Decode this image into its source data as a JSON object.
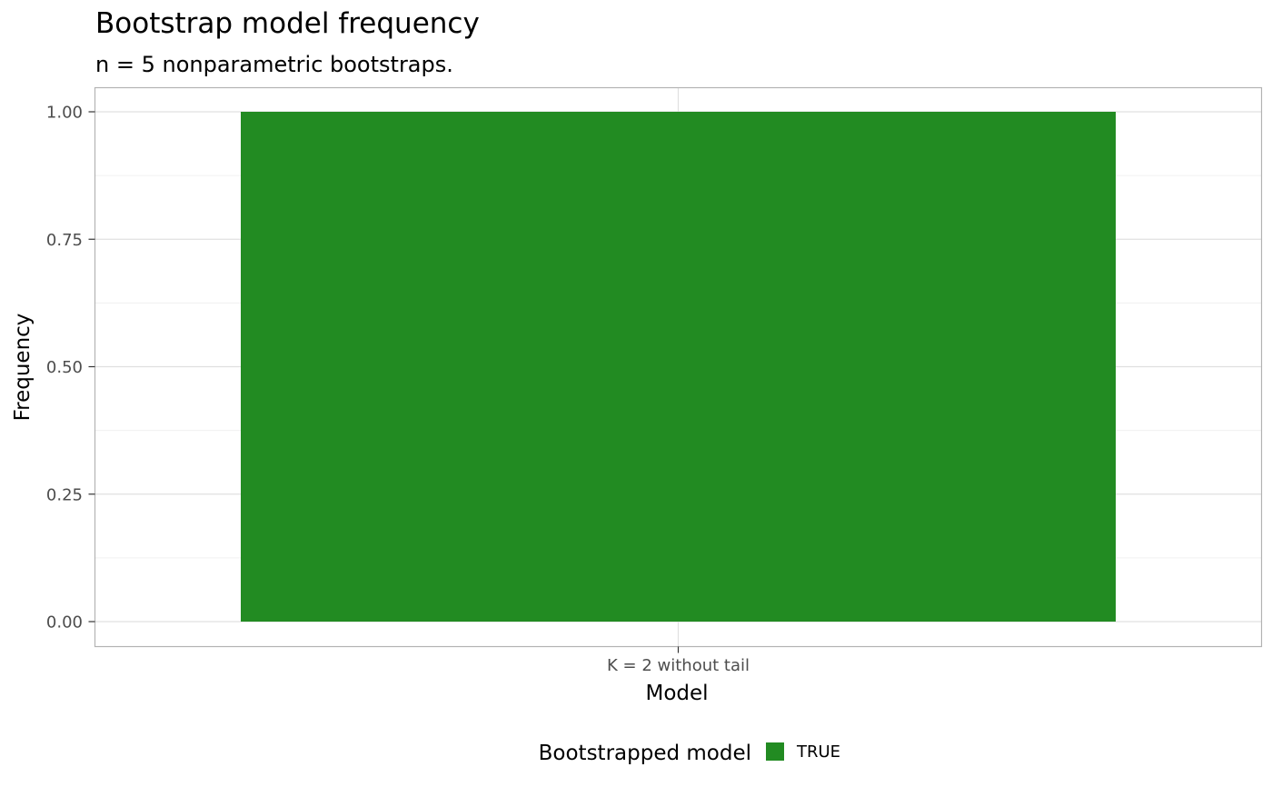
{
  "chart_data": {
    "type": "bar",
    "title": "Bootstrap model frequency",
    "subtitle": "n = 5 nonparametric bootstraps.",
    "xlabel": "Model",
    "ylabel": "Frequency",
    "categories": [
      "K = 2 without tail"
    ],
    "series": [
      {
        "name": "TRUE",
        "values": [
          1.0
        ],
        "color": "#228B22"
      }
    ],
    "ylim": [
      0,
      1.0
    ],
    "yticks": [
      "0.00",
      "0.25",
      "0.50",
      "0.75",
      "1.00"
    ],
    "ytick_values": [
      0,
      0.25,
      0.5,
      0.75,
      1.0
    ],
    "grid": true,
    "legend": {
      "title": "Bootstrapped model",
      "position": "bottom",
      "entries": [
        {
          "label": "TRUE",
          "color": "#228B22"
        }
      ]
    }
  }
}
